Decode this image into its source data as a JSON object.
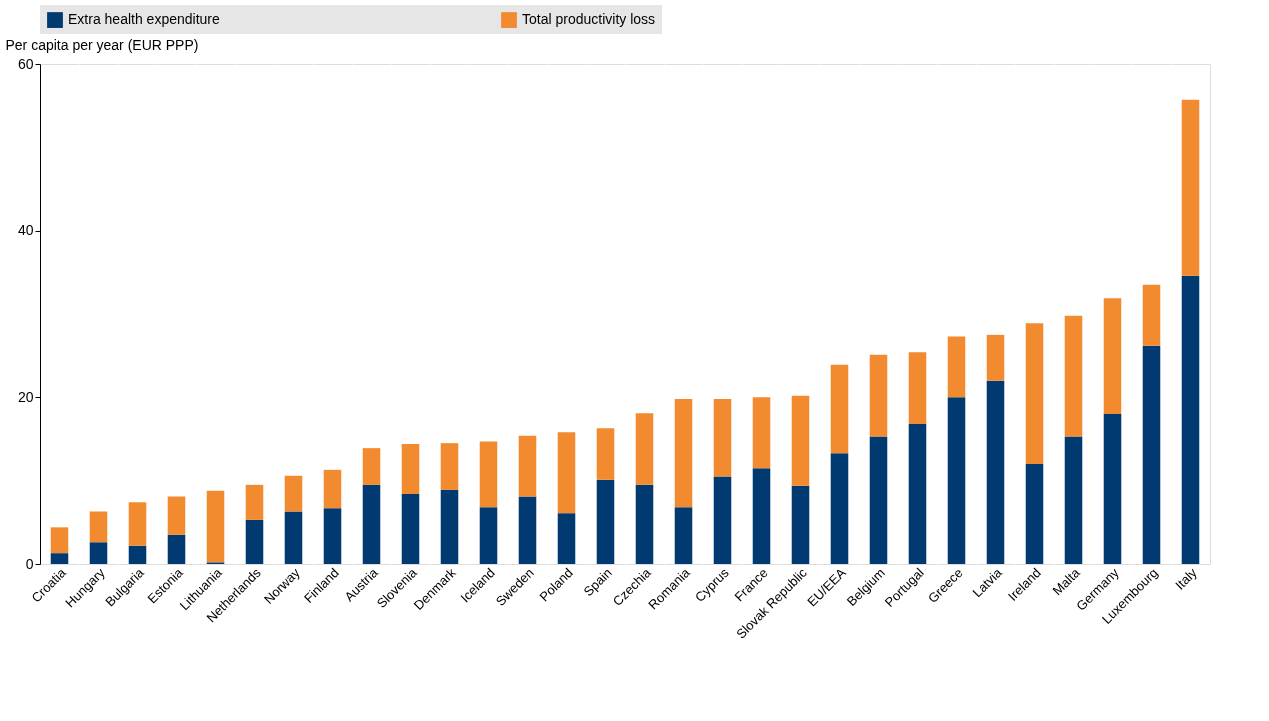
{
  "chart_data": {
    "type": "bar",
    "stacked": true,
    "ylabel": "Per capita per year (EUR PPP)",
    "categories": [
      "Croatia",
      "Hungary",
      "Bulgaria",
      "Estonia",
      "Lithuania",
      "Netherlands",
      "Norway",
      "Finland",
      "Austria",
      "Slovenia",
      "Denmark",
      "Iceland",
      "Sweden",
      "Poland",
      "Spain",
      "Czechia",
      "Romania",
      "Cyprus",
      "France",
      "Slovak Republic",
      "EU/EEA",
      "Belgium",
      "Portugal",
      "Greece",
      "Latvia",
      "Ireland",
      "Malta",
      "Germany",
      "Luxembourg",
      "Italy"
    ],
    "series": [
      {
        "name": "Extra health expenditure",
        "color": "#003a70",
        "values": [
          1.3,
          2.6,
          2.2,
          3.5,
          0.2,
          5.3,
          6.3,
          6.7,
          9.5,
          8.4,
          8.9,
          6.8,
          8.1,
          6.1,
          10.1,
          9.5,
          6.8,
          10.5,
          11.5,
          9.4,
          13.3,
          15.3,
          16.8,
          20.0,
          22.0,
          12.0,
          15.3,
          18.0,
          26.2,
          34.6
        ]
      },
      {
        "name": "Total productivity loss",
        "color": "#f28a30",
        "values": [
          3.1,
          3.7,
          5.2,
          4.6,
          8.6,
          4.2,
          4.3,
          4.6,
          4.4,
          6.0,
          5.6,
          7.9,
          7.3,
          9.7,
          6.2,
          8.6,
          13.0,
          9.3,
          8.5,
          10.8,
          10.6,
          9.8,
          8.6,
          7.3,
          5.5,
          16.9,
          14.5,
          13.9,
          7.3,
          21.1
        ]
      }
    ],
    "ylim": [
      0,
      60
    ],
    "yticks": [
      0,
      20,
      40,
      60
    ],
    "grid": "x",
    "legend": "top"
  }
}
